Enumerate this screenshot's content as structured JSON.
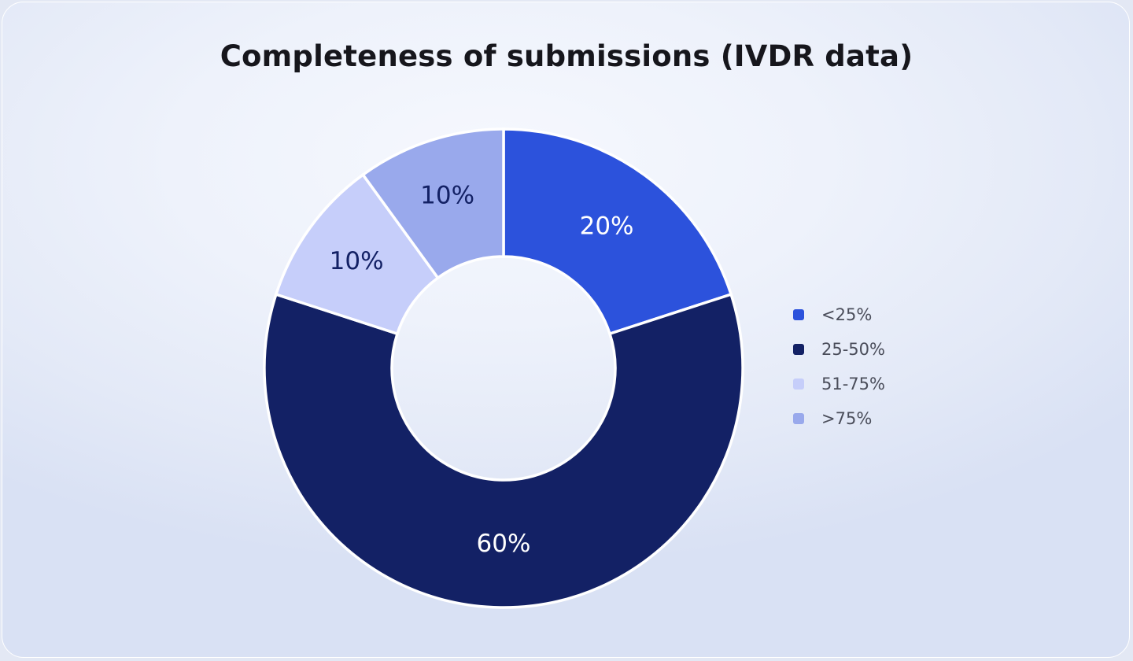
{
  "chart_data": {
    "type": "pie",
    "title": "Completeness of submissions (IVDR data)",
    "categories": [
      "<25%",
      "25-50%",
      "51-75%",
      ">75%"
    ],
    "values": [
      20,
      60,
      10,
      10
    ],
    "value_labels": [
      "20%",
      "60%",
      "10%",
      "10%"
    ],
    "colors": [
      "#2c52dc",
      "#132165",
      "#c6cefa",
      "#99a9ec"
    ],
    "label_colors": [
      "#ffffff",
      "#ffffff",
      "#132165",
      "#132165"
    ],
    "donut": true,
    "legend_position": "right",
    "grid": false
  }
}
